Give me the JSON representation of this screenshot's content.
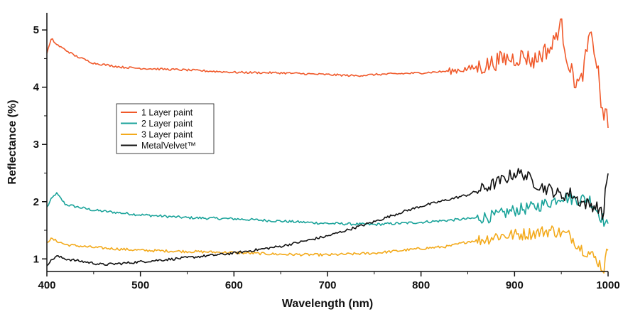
{
  "chart_data": {
    "type": "line",
    "title": "",
    "xlabel": "Wavelength (nm)",
    "ylabel": "Reflectance (%)",
    "xlim": [
      400,
      1000
    ],
    "ylim": [
      0.78,
      5.3
    ],
    "xticks": [
      400,
      500,
      600,
      700,
      800,
      900,
      1000
    ],
    "yticks": [
      1,
      2,
      3,
      4,
      5
    ],
    "grid": false,
    "legend_position": "left-center",
    "series": [
      {
        "name": "1 Layer paint",
        "color": "#f0592a",
        "noise": "high at long wavelengths",
        "x": [
          400,
          405,
          410,
          420,
          430,
          450,
          480,
          500,
          550,
          600,
          650,
          700,
          730,
          750,
          800,
          830,
          850,
          870,
          880,
          890,
          900,
          910,
          920,
          930,
          940,
          945,
          950,
          955,
          960,
          965,
          970,
          975,
          980,
          985,
          990,
          995,
          998,
          1000
        ],
        "y": [
          4.6,
          4.85,
          4.75,
          4.65,
          4.55,
          4.42,
          4.35,
          4.33,
          4.3,
          4.26,
          4.25,
          4.22,
          4.2,
          4.22,
          4.25,
          4.28,
          4.32,
          4.38,
          4.45,
          4.5,
          4.5,
          4.55,
          4.45,
          4.6,
          4.7,
          4.95,
          5.1,
          4.6,
          4.3,
          4.1,
          4.05,
          4.4,
          4.9,
          4.7,
          4.2,
          3.3,
          3.8,
          3.3
        ]
      },
      {
        "name": "2 Layer paint",
        "color": "#1aa39a",
        "noise": "medium",
        "x": [
          400,
          405,
          410,
          420,
          450,
          500,
          550,
          600,
          650,
          700,
          750,
          800,
          850,
          880,
          900,
          920,
          940,
          950,
          960,
          970,
          980,
          990,
          1000
        ],
        "y": [
          1.9,
          2.05,
          2.15,
          1.95,
          1.85,
          1.77,
          1.72,
          1.7,
          1.66,
          1.62,
          1.6,
          1.64,
          1.7,
          1.75,
          1.85,
          1.9,
          2.0,
          2.1,
          2.05,
          2.05,
          2.05,
          1.8,
          1.55
        ]
      },
      {
        "name": "3 Layer paint",
        "color": "#f3aa1c",
        "noise": "medium",
        "x": [
          400,
          405,
          420,
          450,
          500,
          550,
          600,
          650,
          700,
          750,
          800,
          830,
          850,
          870,
          880,
          900,
          920,
          940,
          950,
          960,
          970,
          980,
          990,
          995,
          1000
        ],
        "y": [
          1.3,
          1.35,
          1.25,
          1.2,
          1.15,
          1.13,
          1.11,
          1.08,
          1.07,
          1.1,
          1.18,
          1.22,
          1.3,
          1.35,
          1.4,
          1.42,
          1.45,
          1.5,
          1.45,
          1.4,
          1.2,
          1.1,
          0.95,
          0.8,
          1.2
        ]
      },
      {
        "name": "MetalVelvet™",
        "color": "#111111",
        "noise": "medium",
        "x": [
          400,
          410,
          420,
          440,
          460,
          480,
          500,
          550,
          600,
          650,
          700,
          750,
          780,
          800,
          820,
          850,
          870,
          890,
          900,
          910,
          920,
          930,
          940,
          950,
          960,
          970,
          980,
          990,
          995,
          998,
          1000
        ],
        "y": [
          0.9,
          1.05,
          1.0,
          0.95,
          0.9,
          0.92,
          0.95,
          1.02,
          1.1,
          1.22,
          1.4,
          1.65,
          1.82,
          1.92,
          2.0,
          2.12,
          2.25,
          2.4,
          2.5,
          2.48,
          2.35,
          2.25,
          2.2,
          2.1,
          2.15,
          2.0,
          1.95,
          1.9,
          1.7,
          2.45,
          2.4
        ]
      }
    ]
  }
}
